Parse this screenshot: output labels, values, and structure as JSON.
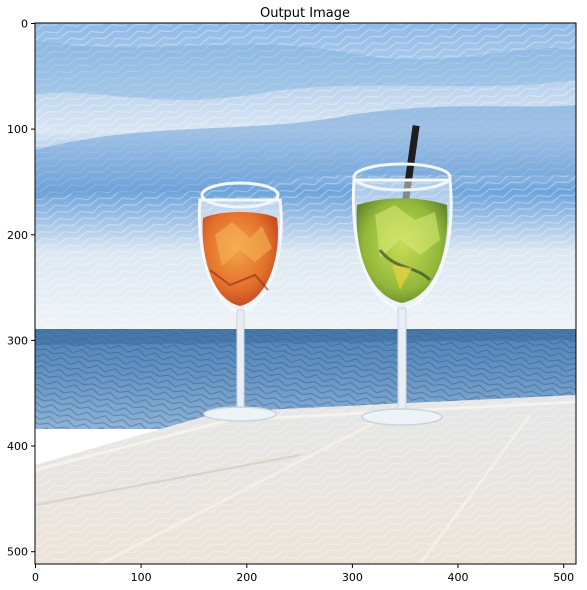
{
  "figure": {
    "title": "Output Image",
    "x_extent": [
      0,
      512
    ],
    "y_extent": [
      0,
      512
    ],
    "x_ticks": [
      0,
      100,
      200,
      300,
      400,
      500
    ],
    "y_ticks": [
      0,
      100,
      200,
      300,
      400,
      500
    ]
  },
  "image_description": {
    "style": "stylized painterly / neural style transfer",
    "subjects": [
      "orange-cocktail-wine-glass",
      "green-cocktail-wine-glass-with-black-straw"
    ],
    "colors": {
      "sky": "#9cc4ea",
      "sky_light": "#dfe9f4",
      "sea": "#5d8fc2",
      "sea_dark": "#3f6f9e",
      "table": "#e9e4dc",
      "orange_drink": "#e5782e",
      "green_drink": "#9bbf3a",
      "straw": "#1e1e1e",
      "glass": "#eef3f8"
    }
  }
}
